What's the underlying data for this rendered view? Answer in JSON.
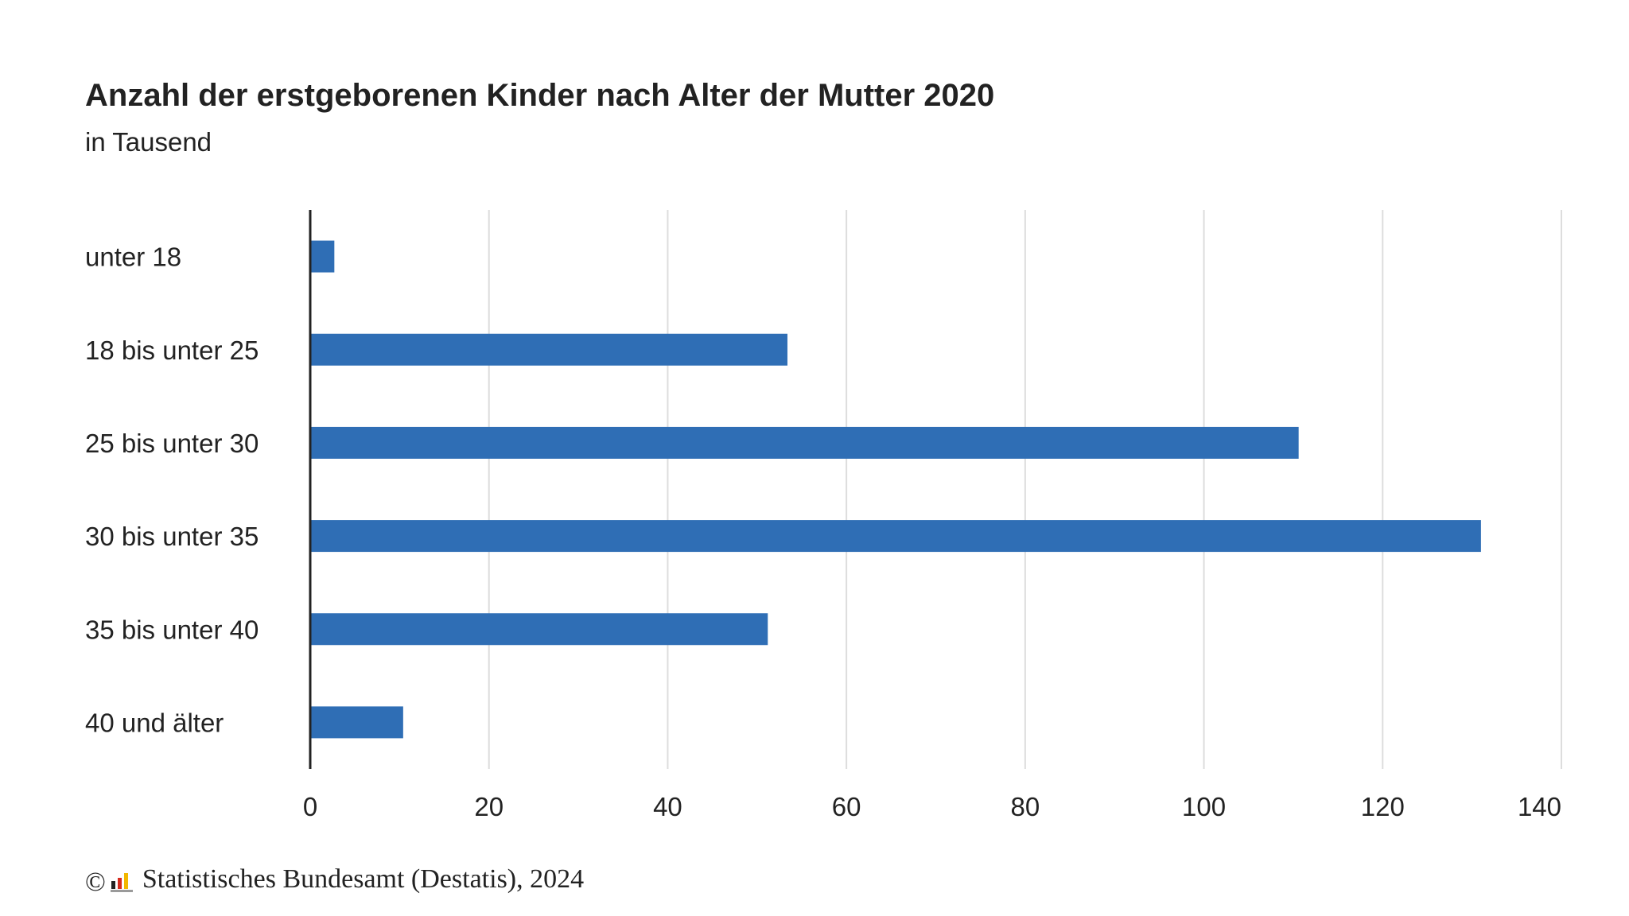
{
  "chart_data": {
    "type": "bar",
    "orientation": "horizontal",
    "title": "Anzahl der erstgeborenen Kinder nach Alter der Mutter 2020",
    "subtitle": "in Tausend",
    "categories": [
      "unter 18",
      "18 bis unter 25",
      "25 bis unter 30",
      "30 bis unter 35",
      "35 bis unter 40",
      "40 und älter"
    ],
    "values": [
      2.7,
      53.4,
      110.6,
      131.0,
      51.2,
      10.4
    ],
    "xlim": [
      0,
      140
    ],
    "xticks": [
      0,
      20,
      40,
      60,
      80,
      100,
      120,
      140
    ],
    "xlabel": "",
    "ylabel": "",
    "grid": true,
    "legend": "none",
    "bar_color": "#2f6eb5",
    "grid_color": "#dddddd",
    "axis_color": "#222222"
  },
  "footer": {
    "copyright": "©",
    "source": "Statistisches Bundesamt (Destatis), 2024"
  }
}
